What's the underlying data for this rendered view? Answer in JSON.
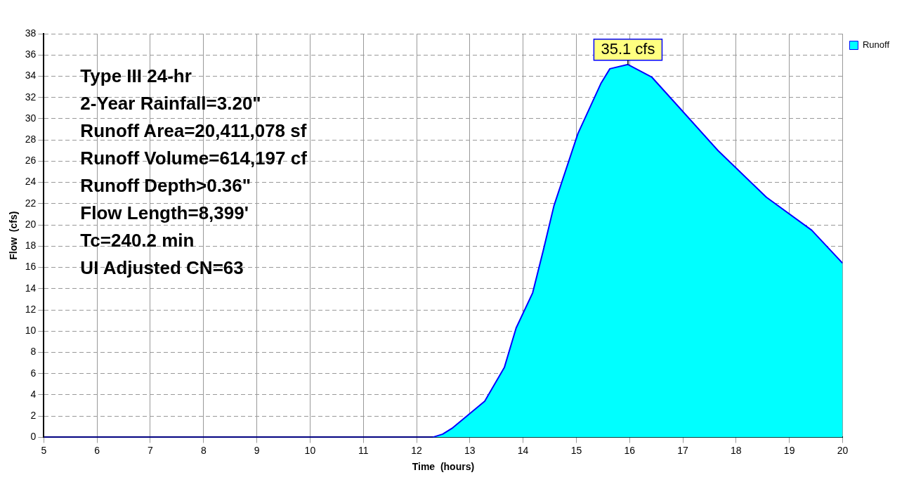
{
  "chart_data": {
    "type": "area",
    "xlabel": "Time  (hours)",
    "ylabel": "Flow  (cfs)",
    "x": [
      5,
      12.3,
      12.49,
      12.68,
      13.28,
      13.65,
      13.87,
      14.18,
      14.38,
      14.58,
      15.03,
      15.46,
      15.63,
      15.97,
      16.42,
      16.87,
      17.66,
      18.57,
      19.42,
      20
    ],
    "series": [
      {
        "name": "Runoff",
        "color": "#00ffff",
        "values": [
          0,
          0,
          0.3,
          0.9,
          3.4,
          6.6,
          10.3,
          13.6,
          17.6,
          21.8,
          28.6,
          33.3,
          34.7,
          35.1,
          33.9,
          31.4,
          27.0,
          22.6,
          19.5,
          16.4
        ]
      }
    ],
    "xlim": [
      5,
      20
    ],
    "xticks": [
      5,
      6,
      7,
      8,
      9,
      10,
      11,
      12,
      13,
      14,
      15,
      16,
      17,
      18,
      19,
      20
    ],
    "ylim": [
      0,
      38
    ],
    "yticks": [
      0,
      2,
      4,
      6,
      8,
      10,
      12,
      14,
      16,
      18,
      20,
      22,
      24,
      26,
      28,
      30,
      32,
      34,
      36,
      38
    ],
    "grid": true,
    "legend": "top right",
    "annotations": [
      "Type III 24-hr",
      "2-Year Rainfall=3.20\"",
      "Runoff Area=20,411,078 sf",
      "Runoff Volume=614,197 cf",
      "Runoff Depth>0.36\"",
      "Flow Length=8,399'",
      "Tc=240.2 min",
      "UI Adjusted CN=63",
      {
        "text": "35.1 cfs",
        "x": 15.97,
        "y": 35.1
      }
    ]
  }
}
